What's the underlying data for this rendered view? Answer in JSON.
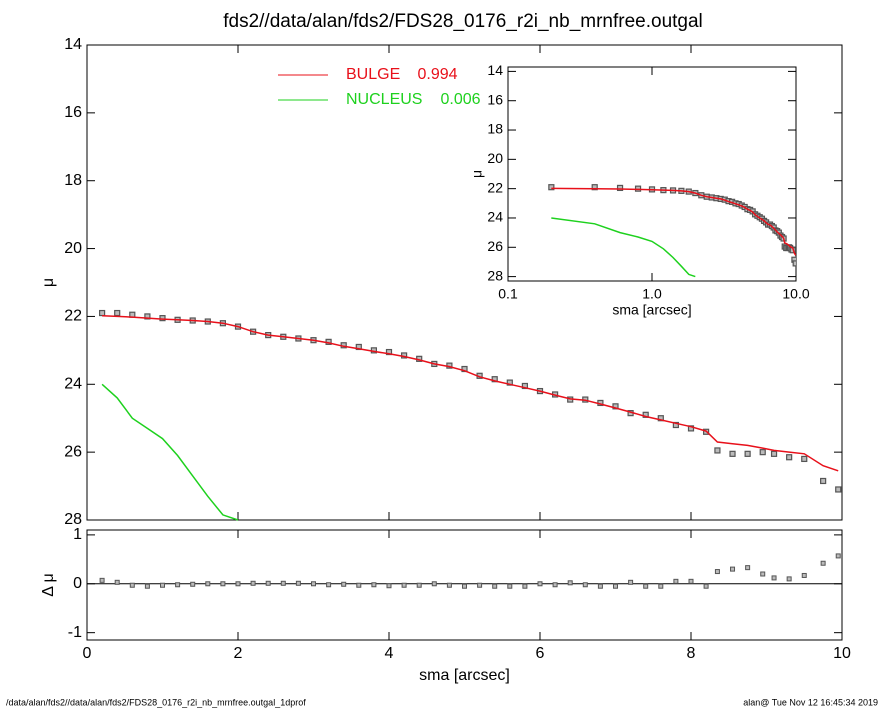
{
  "chart_data": [
    {
      "type": "line",
      "title": "fds2//data/alan/fds2/FDS28_0176_r2i_nb_mrnfree.outgal",
      "ylabel": "μ",
      "x": [
        0.2,
        0.4,
        0.6,
        0.8,
        1.0,
        1.2,
        1.4,
        1.6,
        1.8,
        2.0,
        2.2,
        2.4,
        2.6,
        2.8,
        3.0,
        3.2,
        3.4,
        3.6,
        3.8,
        4.0,
        4.2,
        4.4,
        4.6,
        4.8,
        5.0,
        5.2,
        5.4,
        5.6,
        5.8,
        6.0,
        6.2,
        6.4,
        6.6,
        6.8,
        7.0,
        7.2,
        7.4,
        7.6,
        7.8,
        8.0,
        8.2,
        8.35,
        8.55,
        8.75,
        8.95,
        9.1,
        9.3,
        9.5,
        9.75,
        9.95
      ],
      "xlim": [
        0,
        10
      ],
      "xticks": [
        0,
        2,
        4,
        6,
        8,
        10
      ],
      "ylim": [
        28,
        14
      ],
      "yticks": [
        14,
        16,
        18,
        20,
        22,
        24,
        26,
        28
      ],
      "series": [
        {
          "name": "observed",
          "mode": "markers",
          "color": "#555555",
          "values": [
            21.9,
            21.9,
            21.95,
            22.0,
            22.05,
            22.1,
            22.12,
            22.15,
            22.2,
            22.3,
            22.45,
            22.55,
            22.6,
            22.65,
            22.7,
            22.75,
            22.85,
            22.9,
            23.0,
            23.05,
            23.15,
            23.25,
            23.4,
            23.45,
            23.55,
            23.75,
            23.85,
            23.95,
            24.05,
            24.2,
            24.3,
            24.45,
            24.45,
            24.55,
            24.65,
            24.85,
            24.9,
            25.0,
            25.2,
            25.3,
            25.4,
            25.95,
            26.05,
            26.05,
            26.0,
            26.05,
            26.15,
            26.2,
            26.85,
            27.1
          ]
        },
        {
          "name": "BULGE",
          "fraction": 0.994,
          "mode": "line",
          "color": "#e8101a",
          "values": [
            21.98,
            22.0,
            22.02,
            22.05,
            22.08,
            22.1,
            22.12,
            22.15,
            22.2,
            22.3,
            22.45,
            22.55,
            22.6,
            22.65,
            22.7,
            22.78,
            22.88,
            22.95,
            23.03,
            23.1,
            23.18,
            23.28,
            23.4,
            23.48,
            23.6,
            23.78,
            23.9,
            24.0,
            24.1,
            24.2,
            24.32,
            24.43,
            24.47,
            24.58,
            24.7,
            24.82,
            24.95,
            25.05,
            25.15,
            25.25,
            25.38,
            25.7,
            25.75,
            25.8,
            25.88,
            25.95,
            26.0,
            26.05,
            26.4,
            26.55
          ]
        },
        {
          "name": "NUCLEUS",
          "fraction": 0.006,
          "mode": "line",
          "color": "#1ed11e",
          "values": [
            24.0,
            24.4,
            25.0,
            25.3,
            25.6,
            26.1,
            26.7,
            27.3,
            27.85,
            28.0,
            null,
            null,
            null,
            null,
            null,
            null,
            null,
            null,
            null,
            null,
            null,
            null,
            null,
            null,
            null,
            null,
            null,
            null,
            null,
            null,
            null,
            null,
            null,
            null,
            null,
            null,
            null,
            null,
            null,
            null,
            null,
            null,
            null,
            null,
            null,
            null,
            null,
            null,
            null,
            null
          ]
        }
      ]
    },
    {
      "type": "scatter",
      "xlabel": "sma [arcsec]",
      "ylabel": "Δ μ",
      "x": [
        0.2,
        0.4,
        0.6,
        0.8,
        1.0,
        1.2,
        1.4,
        1.6,
        1.8,
        2.0,
        2.2,
        2.4,
        2.6,
        2.8,
        3.0,
        3.2,
        3.4,
        3.6,
        3.8,
        4.0,
        4.2,
        4.4,
        4.6,
        4.8,
        5.0,
        5.2,
        5.4,
        5.6,
        5.8,
        6.0,
        6.2,
        6.4,
        6.6,
        6.8,
        7.0,
        7.2,
        7.4,
        7.6,
        7.8,
        8.0,
        8.2,
        8.35,
        8.55,
        8.75,
        8.95,
        9.1,
        9.3,
        9.5,
        9.75,
        9.95
      ],
      "xlim": [
        0,
        10
      ],
      "xticks": [
        0,
        2,
        4,
        6,
        8,
        10
      ],
      "ylim": [
        -1.15,
        1.1
      ],
      "yticks": [
        -1,
        0,
        1
      ],
      "series": [
        {
          "name": "residual",
          "color": "#555555",
          "values": [
            0.07,
            0.03,
            -0.03,
            -0.05,
            -0.03,
            -0.02,
            -0.01,
            0.0,
            0.0,
            0.0,
            0.01,
            0.01,
            0.01,
            0.01,
            0.0,
            -0.02,
            -0.01,
            -0.03,
            -0.02,
            -0.04,
            -0.03,
            -0.03,
            0.0,
            -0.03,
            -0.05,
            -0.03,
            -0.05,
            -0.05,
            -0.05,
            0.0,
            -0.02,
            0.02,
            -0.02,
            -0.05,
            -0.05,
            0.03,
            -0.05,
            -0.05,
            0.05,
            0.05,
            -0.05,
            0.25,
            0.3,
            0.33,
            0.2,
            0.12,
            0.1,
            0.17,
            0.42,
            0.57
          ]
        }
      ]
    },
    {
      "type": "inset",
      "xlabel": "sma [arcsec]",
      "ylabel": "μ",
      "log_x": true,
      "xlim": [
        0.1,
        10
      ],
      "xticks": [
        0.1,
        {
          "value": 1,
          "label": "1.0"
        },
        {
          "value": 10,
          "label": "10.0"
        }
      ],
      "ylim": [
        28.3,
        13.7
      ],
      "yticks": [
        14,
        16,
        18,
        20,
        22,
        24,
        26,
        28
      ]
    }
  ],
  "footer": {
    "left": "/data/alan/fds2//data/alan/fds2/FDS28_0176_r2i_nb_mrnfree.outgal_1dprof",
    "right": "alan@  Tue Nov 12 16:45:34 2019"
  }
}
